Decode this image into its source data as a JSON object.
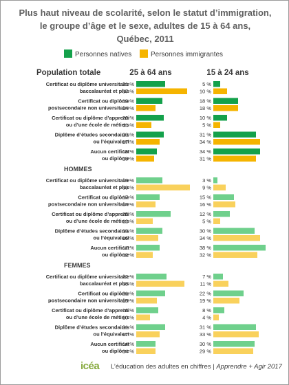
{
  "title_lines": [
    "Plus haut niveau de scolarité, selon le statut d’immigration,",
    "le groupe d’âge et le sexe, adultes de 15 à 64 ans,",
    "Québec, 2011"
  ],
  "colors": {
    "natives_strong": "#14a14b",
    "immigrants_strong": "#f5b400",
    "natives_light": "#6fd08c",
    "immigrants_light": "#f9d15c",
    "text": "#2d2d2d",
    "title": "#606060",
    "footer_accent": "#86a93d"
  },
  "footer": {
    "logo": "icéa",
    "text": "L’éducation des adultes en chiffres | ",
    "text_italic": "Apprendre + Agir 2017"
  },
  "chart_data": {
    "type": "bar",
    "orientation": "horizontal",
    "title": "Plus haut niveau de scolarité, selon le statut d’immigration, le groupe d’âge et le sexe, adultes de 15 à 64 ans, Québec, 2011",
    "legend": [
      "Personnes natives",
      "Personnes immigrantes"
    ],
    "legend_position": "top",
    "columns": [
      "25 à 64 ans",
      "15 à 24 ans"
    ],
    "unit": "%",
    "groups": [
      {
        "label": "Population totale",
        "rows": [
          {
            "category": [
              "Certificat ou diplôme universitaire",
              "baccalauréat et plus"
            ],
            "natives": [
              21,
              5
            ],
            "immigrants": [
              37,
              10
            ]
          },
          {
            "category": [
              "Certificat ou diplôme",
              "postsecondaire non universitaire"
            ],
            "natives": [
              19,
              18
            ],
            "immigrants": [
              14,
              18
            ]
          },
          {
            "category": [
              "Certificat ou diplôme d’apprenti",
              "ou d’une école de métiers"
            ],
            "natives": [
              20,
              10
            ],
            "immigrants": [
              11,
              5
            ]
          },
          {
            "category": [
              "Diplôme d’études secondaires",
              "ou l’équivalent"
            ],
            "natives": [
              20,
              31
            ],
            "immigrants": [
              17,
              34
            ]
          },
          {
            "category": [
              "Aucun certificat",
              "ou diplôme"
            ],
            "natives": [
              15,
              34
            ],
            "immigrants": [
              13,
              31
            ]
          }
        ]
      },
      {
        "label": "HOMMES",
        "rows": [
          {
            "category": [
              "Certificat ou diplôme universitaire",
              "baccalauréat et plus"
            ],
            "natives": [
              19,
              3
            ],
            "immigrants": [
              39,
              9
            ]
          },
          {
            "category": [
              "Certificat ou diplôme",
              "postsecondaire non universitaire"
            ],
            "natives": [
              17,
              15
            ],
            "immigrants": [
              14,
              16
            ]
          },
          {
            "category": [
              "Certificat ou diplôme d’apprenti",
              "ou d’une école de métiers"
            ],
            "natives": [
              25,
              12
            ],
            "immigrants": [
              12,
              5
            ]
          },
          {
            "category": [
              "Diplôme d’études secondaires",
              "ou l’équivalent"
            ],
            "natives": [
              19,
              30
            ],
            "immigrants": [
              16,
              34
            ]
          },
          {
            "category": [
              "Aucun certificat",
              "ou diplôme"
            ],
            "natives": [
              17,
              38
            ],
            "immigrants": [
              12,
              32
            ]
          }
        ]
      },
      {
        "label": "FEMMES",
        "rows": [
          {
            "category": [
              "Certificat ou diplôme universitaire",
              "baccalauréat et plus"
            ],
            "natives": [
              22,
              7
            ],
            "immigrants": [
              35,
              11
            ]
          },
          {
            "category": [
              "Certificat ou diplôme",
              "postsecondaire non universitaire"
            ],
            "natives": [
              21,
              22
            ],
            "immigrants": [
              15,
              19
            ]
          },
          {
            "category": [
              "Certificat ou diplôme d’apprenti",
              "ou d’une école de métiers"
            ],
            "natives": [
              16,
              8
            ],
            "immigrants": [
              10,
              4
            ]
          },
          {
            "category": [
              "Diplôme d’études secondaires",
              "ou l’équivalent"
            ],
            "natives": [
              21,
              31
            ],
            "immigrants": [
              17,
              33
            ]
          },
          {
            "category": [
              "Aucun certificat",
              "ou diplôme"
            ],
            "natives": [
              14,
              30
            ],
            "immigrants": [
              14,
              29
            ]
          }
        ]
      }
    ]
  }
}
